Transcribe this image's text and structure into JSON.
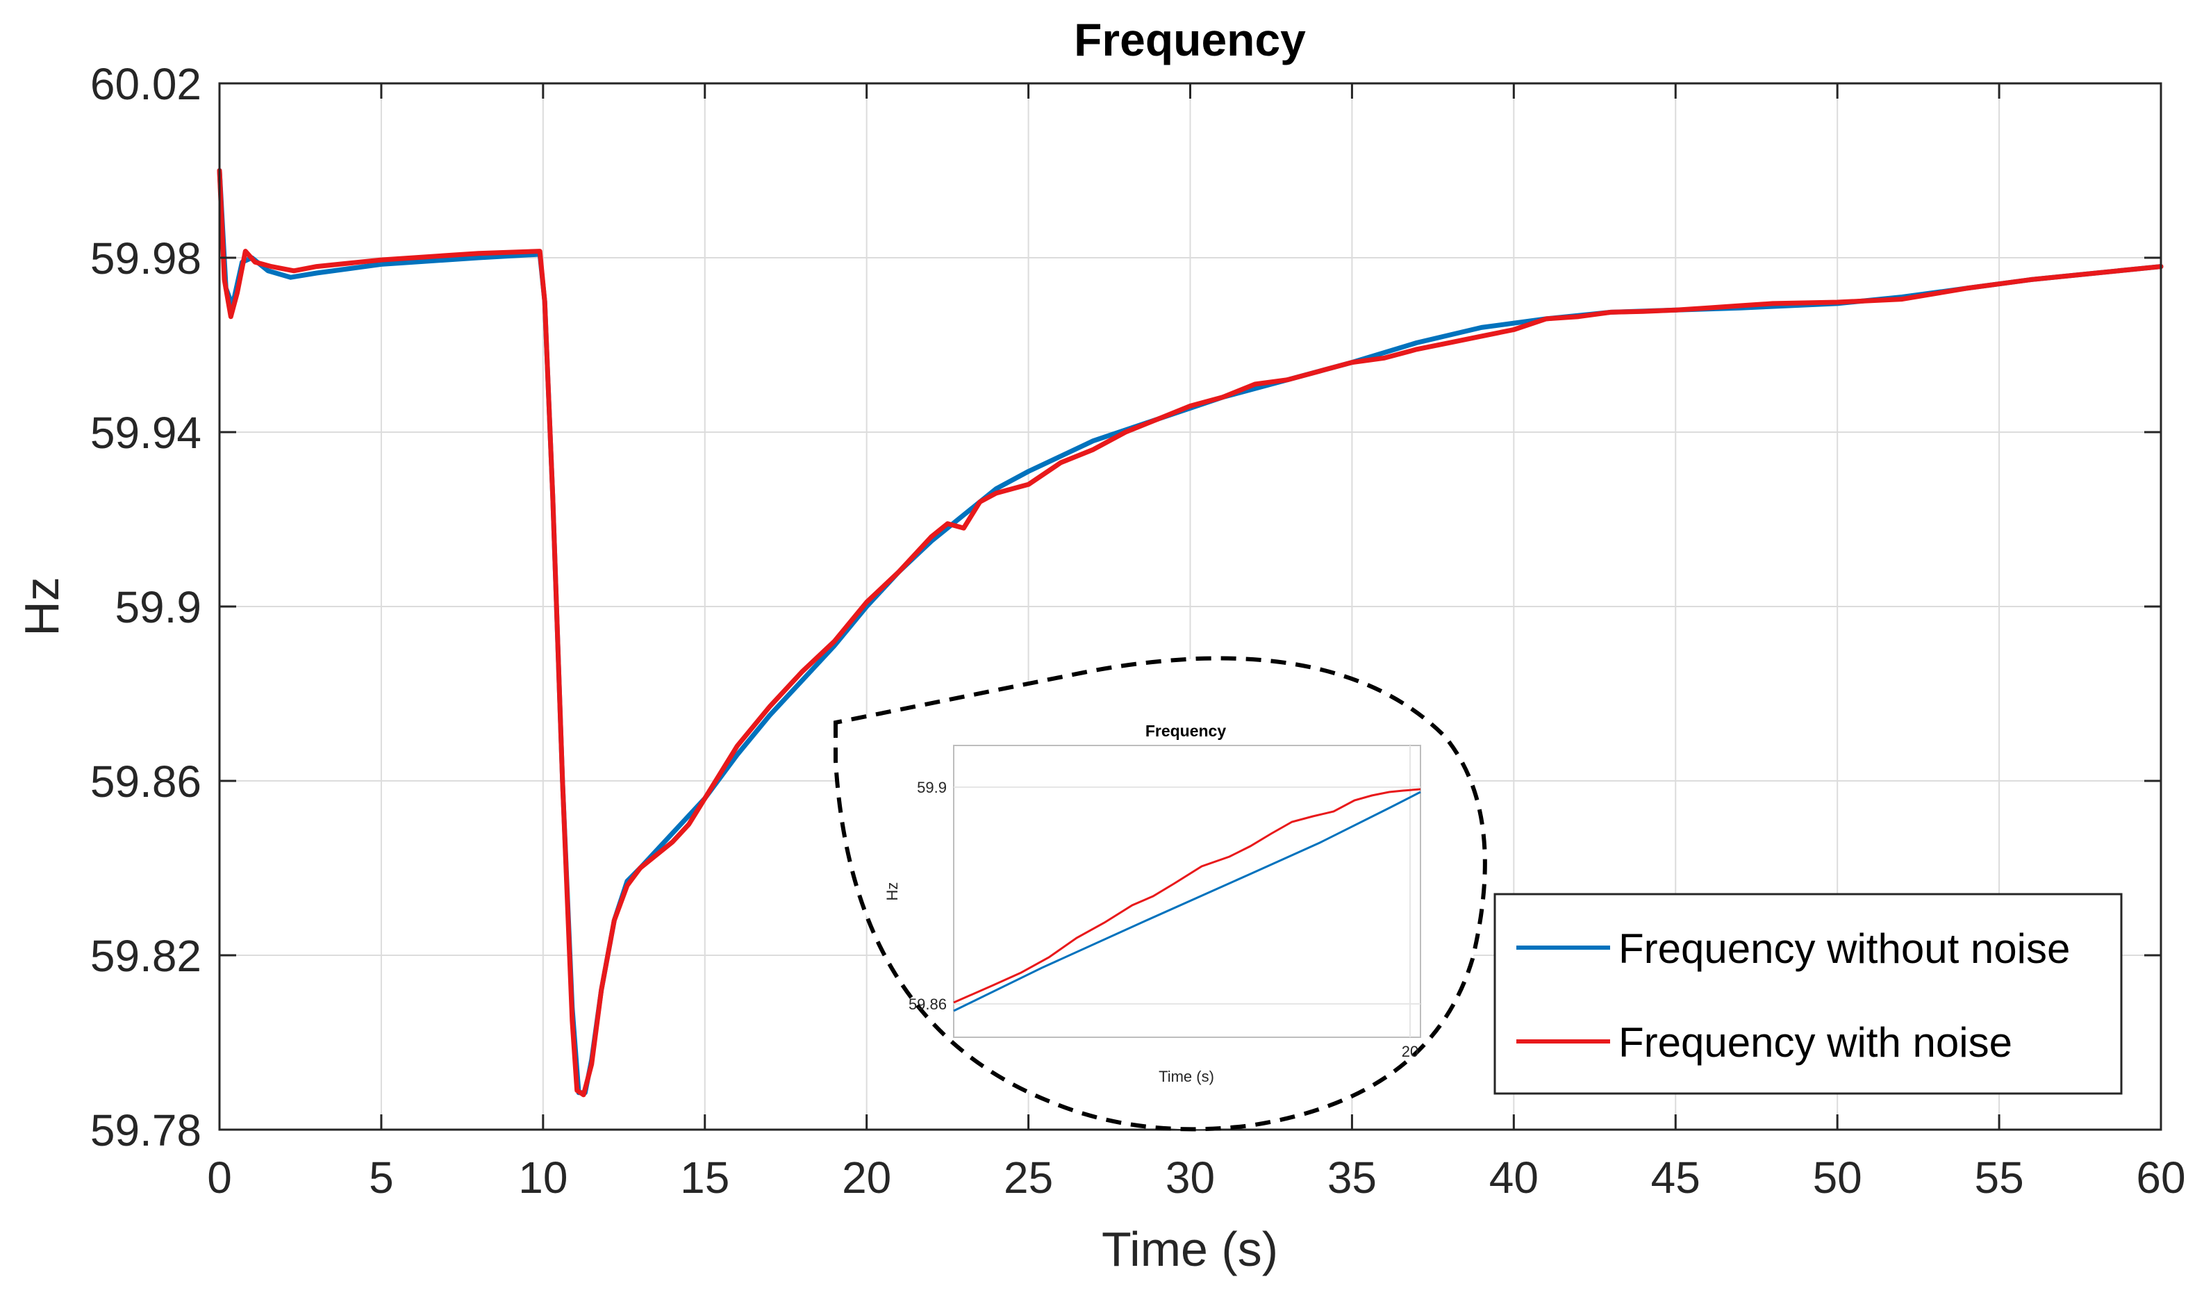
{
  "chart_data": {
    "type": "line",
    "title": "Frequency",
    "xlabel": "Time (s)",
    "ylabel": "Hz",
    "xlim": [
      0,
      60
    ],
    "ylim": [
      59.78,
      60.02
    ],
    "grid": true,
    "x_ticks": [
      0,
      5,
      10,
      15,
      20,
      25,
      30,
      35,
      40,
      45,
      50,
      55,
      60
    ],
    "x_tick_labels": [
      "0",
      "5",
      "10",
      "15",
      "20",
      "25",
      "30",
      "35",
      "40",
      "45",
      "50",
      "55",
      "60"
    ],
    "y_ticks": [
      59.78,
      59.82,
      59.86,
      59.9,
      59.94,
      59.98,
      60.02
    ],
    "y_tick_labels": [
      "59.78",
      "59.82",
      "59.86",
      "59.9",
      "59.94",
      "59.98",
      "60.02"
    ],
    "legend_position": "bottom-right",
    "series": [
      {
        "name": "Frequency without noise",
        "color": "#0072BD",
        "x": [
          0,
          0.2,
          0.4,
          0.7,
          1.0,
          1.5,
          2.2,
          3.0,
          5.0,
          8.0,
          9.9,
          10.05,
          10.3,
          10.6,
          10.9,
          11.1,
          11.3,
          11.5,
          11.8,
          12.2,
          12.6,
          13.0,
          14.0,
          15.0,
          16.0,
          17.0,
          18.0,
          19.0,
          20.0,
          21.0,
          22.0,
          23.0,
          24.0,
          25.0,
          27.0,
          29.0,
          31.0,
          33.0,
          35.0,
          37.0,
          39.0,
          41.0,
          43.0,
          45.0,
          47.0,
          50.0,
          52.0,
          54.0,
          56.0,
          58.0,
          60.0
        ],
        "y": [
          60.0,
          59.973,
          59.969,
          59.979,
          59.98,
          59.977,
          59.9755,
          59.9765,
          59.9785,
          59.98,
          59.9808,
          59.97,
          59.925,
          59.86,
          59.808,
          59.7885,
          59.7885,
          59.796,
          59.812,
          59.828,
          59.837,
          59.84,
          59.848,
          59.856,
          59.866,
          59.875,
          59.883,
          59.891,
          59.9,
          59.908,
          59.915,
          59.921,
          59.927,
          59.931,
          59.938,
          59.943,
          59.948,
          59.952,
          59.956,
          59.9605,
          59.964,
          59.966,
          59.9675,
          59.968,
          59.9685,
          59.9695,
          59.971,
          59.973,
          59.975,
          59.9765,
          59.978
        ]
      },
      {
        "name": "Frequency with noise",
        "color": "#E8191B",
        "x": [
          0,
          0.15,
          0.35,
          0.55,
          0.8,
          1.1,
          1.6,
          2.3,
          3.0,
          5.0,
          8.0,
          9.9,
          10.05,
          10.3,
          10.6,
          10.9,
          11.05,
          11.25,
          11.5,
          11.8,
          12.2,
          12.6,
          13.0,
          13.5,
          14.0,
          14.5,
          15.0,
          16.0,
          17.0,
          18.0,
          19.0,
          20.0,
          21.0,
          22.0,
          22.5,
          23.0,
          23.5,
          24.0,
          25.0,
          26.0,
          27.0,
          28.0,
          29.0,
          30.0,
          31.0,
          32.0,
          33.0,
          34.0,
          35.0,
          36.0,
          37.0,
          38.0,
          39.0,
          40.0,
          41.0,
          42.0,
          43.0,
          44.0,
          45.0,
          46.0,
          47.0,
          48.0,
          50.0,
          52.0,
          54.0,
          56.0,
          58.0,
          60.0
        ],
        "y": [
          60.0,
          59.975,
          59.9665,
          59.972,
          59.9815,
          59.979,
          59.978,
          59.977,
          59.978,
          59.9795,
          59.981,
          59.9815,
          59.97,
          59.925,
          59.86,
          59.805,
          59.789,
          59.788,
          59.795,
          59.812,
          59.828,
          59.836,
          59.84,
          59.843,
          59.846,
          59.85,
          59.856,
          59.868,
          59.877,
          59.885,
          59.892,
          59.901,
          59.908,
          59.916,
          59.919,
          59.918,
          59.924,
          59.926,
          59.928,
          59.933,
          59.936,
          59.94,
          59.943,
          59.946,
          59.948,
          59.951,
          59.952,
          59.954,
          59.956,
          59.957,
          59.959,
          59.9605,
          59.962,
          59.9635,
          59.966,
          59.9665,
          59.9675,
          59.9677,
          59.968,
          59.9685,
          59.969,
          59.9695,
          59.9698,
          59.9705,
          59.973,
          59.975,
          59.9765,
          59.978
        ]
      }
    ],
    "inset": {
      "title": "Frequency",
      "xlabel": "Time (s)",
      "ylabel": "Hz",
      "y_tick_labels": [
        "59.9",
        "59.86"
      ],
      "x_tick_labels": [
        "20"
      ]
    }
  }
}
